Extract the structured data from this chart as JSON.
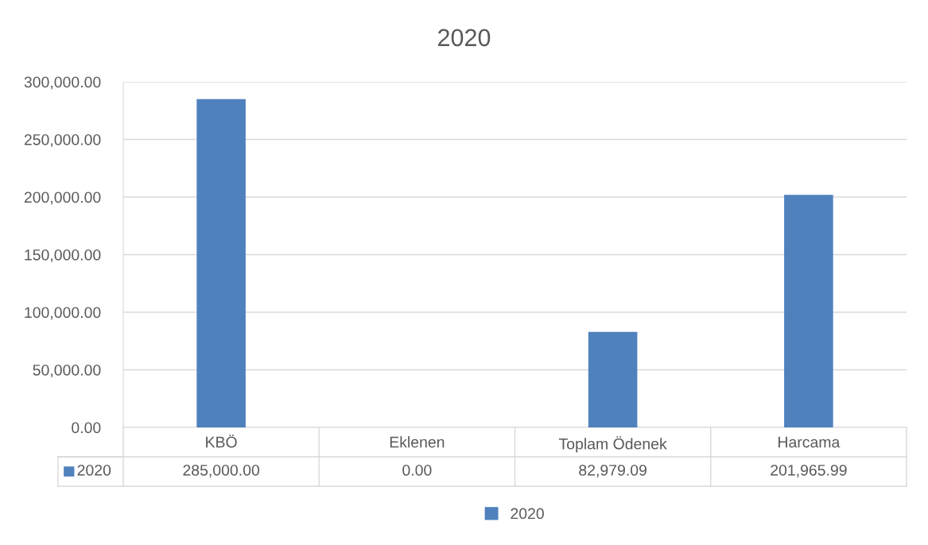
{
  "chart_data": {
    "type": "bar",
    "title": "2020",
    "categories": [
      "KBÖ",
      "Eklenen",
      "Toplam Ödenek",
      "Harcama"
    ],
    "series": [
      {
        "name": "2020",
        "color": "#4f81bd",
        "values": [
          285000,
          0,
          82979.09,
          201965.99
        ],
        "value_labels": [
          "285,000.00",
          "0.00",
          "82,979.09",
          "201,965.99"
        ]
      }
    ],
    "ylim": [
      0,
      300000
    ],
    "yticks": [
      {
        "value": 0,
        "label": "0.00"
      },
      {
        "value": 50000,
        "label": "50,000.00"
      },
      {
        "value": 100000,
        "label": "100,000.00"
      },
      {
        "value": 150000,
        "label": "150,000.00"
      },
      {
        "value": 200000,
        "label": "200,000.00"
      },
      {
        "value": 250000,
        "label": "250,000.00"
      },
      {
        "value": 300000,
        "label": "300,000.00"
      }
    ],
    "grid": "y",
    "legend": "bottom"
  }
}
